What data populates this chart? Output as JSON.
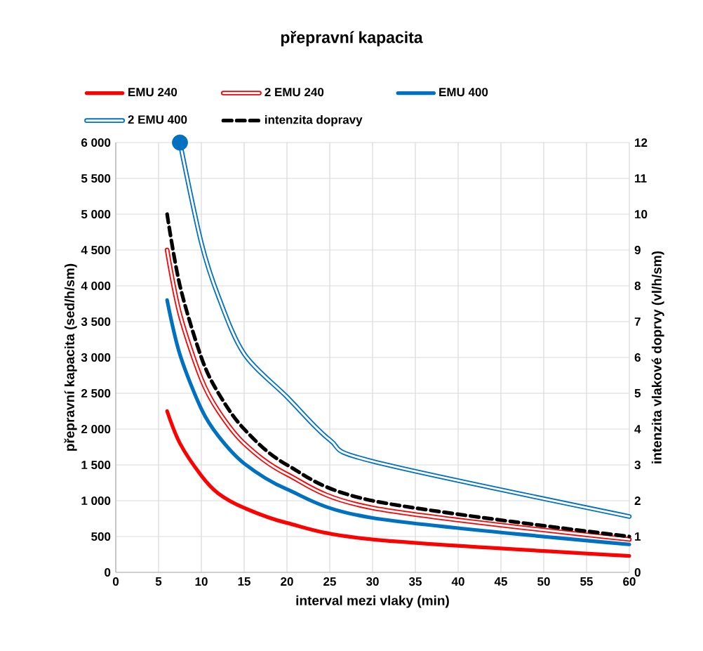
{
  "chart_data": {
    "type": "line",
    "title": "přepravní kapacita",
    "xlabel": "interval mezi vlaky (min)",
    "ylabel": "přepravní kapacita (sed/h/sm)",
    "y2label": "intenzita vlakové doprvy (vl/h/sm)",
    "xlim": [
      0,
      60
    ],
    "xticks": [
      0,
      5,
      10,
      15,
      20,
      25,
      30,
      35,
      40,
      45,
      50,
      55,
      60
    ],
    "ylim": [
      0,
      6000
    ],
    "yticks": [
      0,
      500,
      {
        "value": 1000,
        "label": "1 000"
      },
      {
        "value": 1500,
        "label": "1 500"
      },
      {
        "value": 2000,
        "label": "2 000"
      },
      {
        "value": 2500,
        "label": "2 500"
      },
      {
        "value": 3000,
        "label": "3 000"
      },
      {
        "value": 3500,
        "label": "3 500"
      },
      {
        "value": 4000,
        "label": "4 000"
      },
      {
        "value": 4500,
        "label": "4 500"
      },
      {
        "value": 5000,
        "label": "5 000"
      },
      {
        "value": 5500,
        "label": "5 500"
      },
      {
        "value": 6000,
        "label": "6 000"
      }
    ],
    "y2lim": [
      0,
      12
    ],
    "y2ticks": [
      0,
      1,
      2,
      3,
      4,
      5,
      6,
      7,
      8,
      9,
      10,
      11,
      12
    ],
    "grid": true,
    "legend": "top",
    "marker": "none",
    "line_style": "solid",
    "series": [
      {
        "name": "EMU 240",
        "color": "#ff0000",
        "x": [
          6,
          7.5,
          10,
          12,
          15,
          20,
          30,
          60
        ],
        "values": [
          2250,
          1800,
          1350,
          1100,
          900,
          690,
          460,
          230
        ]
      },
      {
        "name": "2 EMU 240",
        "color": "#ff0000",
        "line_style": "solid",
        "x": [
          6,
          7.5,
          10,
          12,
          15,
          20,
          30,
          60
        ],
        "values": [
          4500,
          3600,
          2700,
          2250,
          1800,
          1370,
          900,
          460
        ]
      },
      {
        "name": "EMU 400",
        "color": "#0070c0",
        "x": [
          6,
          7.5,
          10,
          12,
          15,
          20,
          30,
          60
        ],
        "values": [
          3800,
          3040,
          2280,
          1900,
          1520,
          1160,
          760,
          390
        ]
      },
      {
        "name": "2 EMU 400",
        "color": "#0070c0",
        "line_style": "solid",
        "x": [
          7.5,
          10,
          12,
          15,
          20,
          25,
          30,
          60
        ],
        "values": [
          6000,
          4600,
          3850,
          3050,
          2450,
          1850,
          1550,
          780
        ]
      },
      {
        "name": "intenzita dopravy",
        "color": "#000000",
        "line_style": "dashed",
        "axis": "y2",
        "x": [
          6,
          7.5,
          10,
          12,
          15,
          20,
          30,
          60
        ],
        "values": [
          10,
          8,
          6,
          5,
          4,
          3,
          2,
          1
        ]
      },
      {
        "type": "scatter",
        "marker": "circle",
        "color": "#0070c0",
        "x": [
          7.5
        ],
        "values": [
          6000
        ]
      }
    ]
  }
}
